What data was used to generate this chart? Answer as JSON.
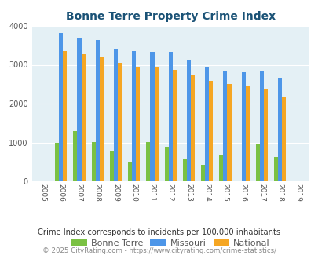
{
  "title": "Bonne Terre Property Crime Index",
  "years": [
    2005,
    2006,
    2007,
    2008,
    2009,
    2010,
    2011,
    2012,
    2013,
    2014,
    2015,
    2016,
    2017,
    2018,
    2019
  ],
  "bonne_terre": [
    0,
    1000,
    1300,
    1020,
    780,
    500,
    1020,
    890,
    570,
    430,
    660,
    0,
    950,
    630,
    0
  ],
  "missouri": [
    0,
    3820,
    3700,
    3630,
    3390,
    3350,
    3330,
    3330,
    3140,
    2930,
    2840,
    2800,
    2840,
    2640,
    0
  ],
  "national": [
    0,
    3350,
    3280,
    3210,
    3050,
    2950,
    2920,
    2870,
    2720,
    2590,
    2500,
    2460,
    2380,
    2180,
    0
  ],
  "color_bonne_terre": "#7ac143",
  "color_missouri": "#4d96e8",
  "color_national": "#f5a623",
  "bg_color": "#e4f0f5",
  "ylim": [
    0,
    4000
  ],
  "yticks": [
    0,
    1000,
    2000,
    3000,
    4000
  ],
  "footnote1": "Crime Index corresponds to incidents per 100,000 inhabitants",
  "footnote2": "© 2025 CityRating.com - https://www.cityrating.com/crime-statistics/",
  "legend_labels": [
    "Bonne Terre",
    "Missouri",
    "National"
  ]
}
